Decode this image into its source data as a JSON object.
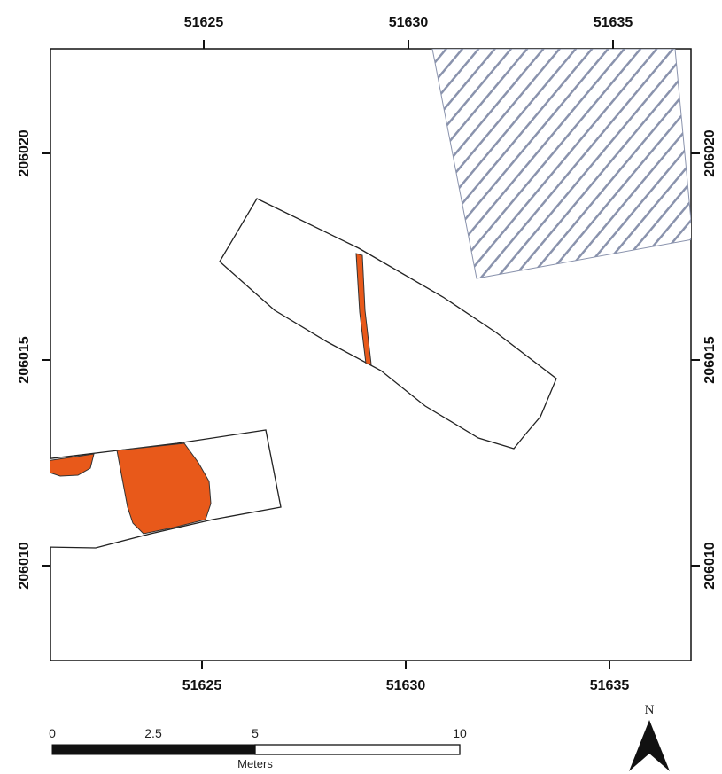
{
  "map": {
    "x_ticks": [
      "51625",
      "51630",
      "51635"
    ],
    "y_ticks": [
      "206020",
      "206015",
      "206010"
    ],
    "colors": {
      "feature_fill": "#e8591a",
      "hatch_line": "#8a93ad",
      "outline": "#222222"
    }
  },
  "scale_bar": {
    "labels": [
      "0",
      "2.5",
      "5",
      "10"
    ],
    "unit": "Meters"
  },
  "north_arrow": {
    "label": "N",
    "icon": "north-arrow-icon"
  }
}
